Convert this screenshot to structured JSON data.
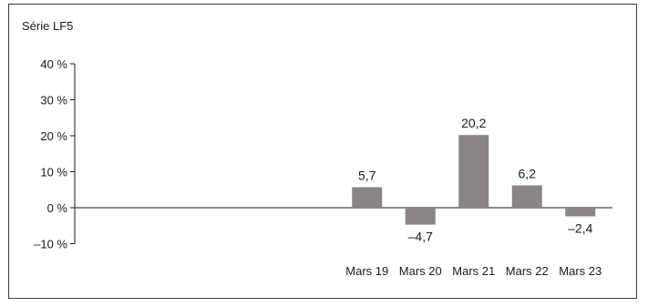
{
  "chart_data": {
    "type": "bar",
    "title": "Série LF5",
    "categories": [
      "",
      "",
      "",
      "",
      "",
      "Mars 19",
      "Mars 20",
      "Mars 21",
      "Mars 22",
      "Mars 23"
    ],
    "values": [
      null,
      null,
      null,
      null,
      null,
      5.7,
      -4.7,
      20.2,
      6.2,
      -2.4
    ],
    "data_labels": [
      "",
      "",
      "",
      "",
      "",
      "5,7",
      "–4,7",
      "20,2",
      "6,2",
      "–2,4"
    ],
    "ylim": [
      -10,
      40
    ],
    "yticks": [
      40,
      30,
      20,
      10,
      0,
      -10
    ],
    "ytick_labels": [
      "40 %",
      "30 %",
      "20 %",
      "10 %",
      "0 %",
      "–10 %"
    ],
    "xlabel": "",
    "ylabel": "",
    "grid": false,
    "colors": {
      "bar": "#8a8584",
      "axis": "#1a1a1a",
      "border": "#3a3a3a"
    }
  }
}
